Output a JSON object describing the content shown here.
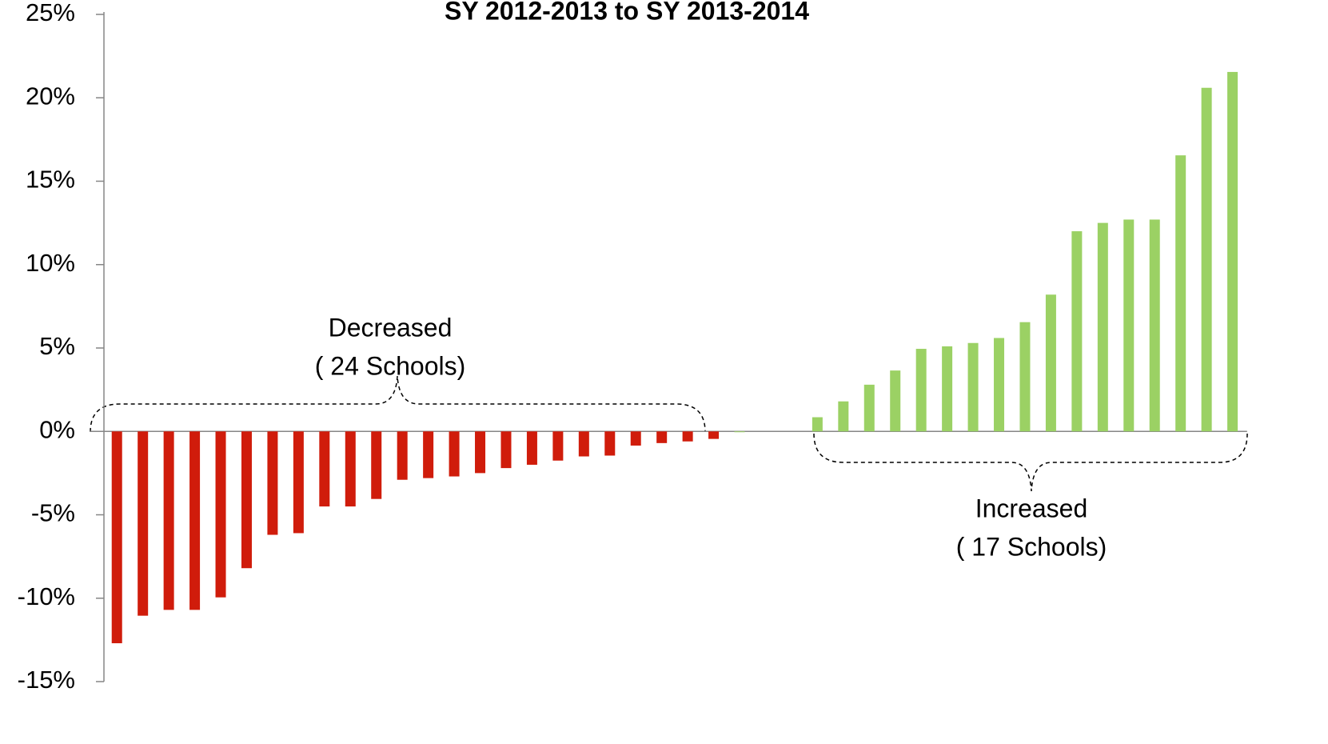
{
  "chart_data": {
    "type": "bar",
    "title": "SY 2012-2013 to SY 2013-2014",
    "categories": [
      null,
      null,
      null,
      null,
      null,
      null,
      null,
      null,
      null,
      null,
      null,
      null,
      null,
      null,
      null,
      null,
      null,
      null,
      null,
      null,
      null,
      null,
      null,
      null,
      null,
      null,
      null,
      null,
      null,
      null,
      null,
      null,
      null,
      null,
      null,
      null,
      null,
      null,
      null,
      null,
      null,
      null,
      null,
      null
    ],
    "values": [
      -12.7,
      -11.05,
      -10.7,
      -10.7,
      -9.95,
      -8.2,
      -6.2,
      -6.1,
      -4.5,
      -4.5,
      -4.05,
      -2.9,
      -2.8,
      -2.7,
      -2.5,
      -2.2,
      -2.0,
      -1.75,
      -1.5,
      -1.45,
      -0.85,
      -0.7,
      -0.6,
      -0.45,
      0,
      null,
      null,
      0.85,
      1.8,
      2.8,
      3.65,
      4.95,
      5.1,
      5.3,
      5.6,
      6.55,
      8.2,
      12.0,
      12.5,
      12.7,
      12.7,
      16.55,
      20.6,
      21.55
    ],
    "negative_color": "#d01c0b",
    "positive_color": "#9bd164",
    "ylim": [
      -15,
      25
    ],
    "yticks": [
      {
        "value": -15,
        "label": "-15%"
      },
      {
        "value": -10,
        "label": "-10%"
      },
      {
        "value": -5,
        "label": "-5%"
      },
      {
        "value": 0,
        "label": "0%"
      },
      {
        "value": 5,
        "label": "5%"
      },
      {
        "value": 10,
        "label": "10%"
      },
      {
        "value": 15,
        "label": "15%"
      },
      {
        "value": 20,
        "label": "20%"
      },
      {
        "value": 25,
        "label": "25%"
      }
    ],
    "annotations": [
      {
        "line1": "Decreased",
        "line2": "( 24 Schools)"
      },
      {
        "line1": "Increased",
        "line2": "( 17 Schools)"
      }
    ]
  }
}
